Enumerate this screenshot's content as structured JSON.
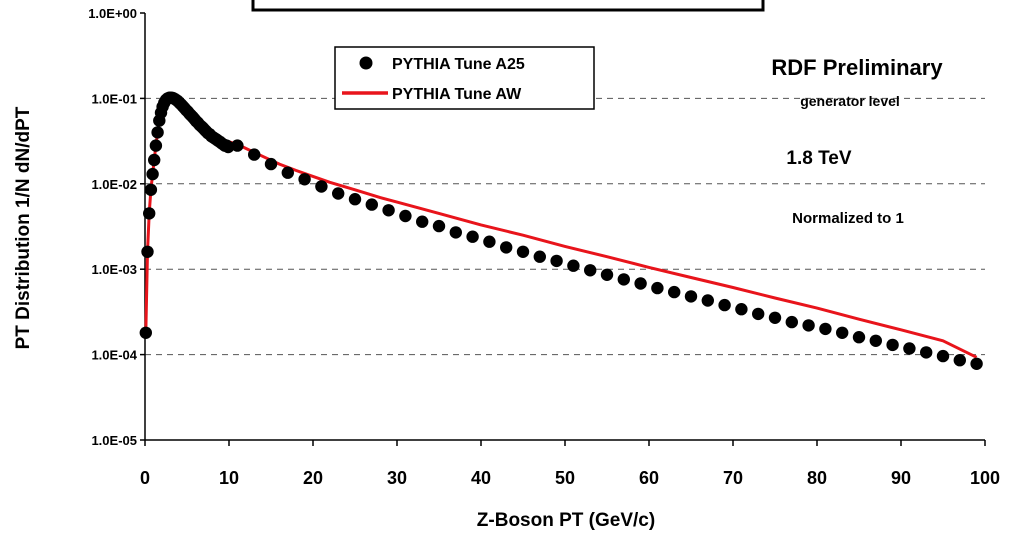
{
  "chart_data": {
    "type": "scatter",
    "xlabel": "Z-Boson PT (GeV/c)",
    "ylabel": "PT Distribution 1/N dN/dPT",
    "xlim": [
      0,
      100
    ],
    "ylim": [
      1e-05,
      1
    ],
    "yscale": "log",
    "x_ticks": [
      0,
      10,
      20,
      30,
      40,
      50,
      60,
      70,
      80,
      90,
      100
    ],
    "x_tick_labels": [
      "0",
      "10",
      "20",
      "30",
      "40",
      "50",
      "60",
      "70",
      "80",
      "90",
      "100"
    ],
    "y_ticks": [
      1,
      0.1,
      0.01,
      0.001,
      0.0001,
      1e-05
    ],
    "y_tick_labels": [
      "1.0E+00",
      "1.0E-01",
      "1.0E-02",
      "1.0E-03",
      "1.0E-04",
      "1.0E-05"
    ],
    "grid": "horizontal-dashed",
    "legend_position": "top-left",
    "series": [
      {
        "name": "PYTHIA Tune A25",
        "style": "markers",
        "color": "#000000",
        "x": [
          0.1,
          0.3,
          0.5,
          0.7,
          0.9,
          1.1,
          1.3,
          1.5,
          1.7,
          1.9,
          2.1,
          2.3,
          2.5,
          2.7,
          2.9,
          3.1,
          3.3,
          3.5,
          3.7,
          3.9,
          4.1,
          4.3,
          4.5,
          4.7,
          4.9,
          5.1,
          5.3,
          5.5,
          5.7,
          5.9,
          6.1,
          6.3,
          6.5,
          6.7,
          6.9,
          7.1,
          7.3,
          7.5,
          7.7,
          7.9,
          8.1,
          8.3,
          8.5,
          8.7,
          8.9,
          9.1,
          9.3,
          9.5,
          9.7,
          9.9,
          11,
          13,
          15,
          17,
          19,
          21,
          23,
          25,
          27,
          29,
          31,
          33,
          35,
          37,
          39,
          41,
          43,
          45,
          47,
          49,
          51,
          53,
          55,
          57,
          59,
          61,
          63,
          65,
          67,
          69,
          71,
          73,
          75,
          77,
          79,
          81,
          83,
          85,
          87,
          89,
          91,
          93,
          95,
          97,
          99
        ],
        "y": [
          0.00018,
          0.0016,
          0.0045,
          0.0085,
          0.013,
          0.019,
          0.028,
          0.04,
          0.055,
          0.068,
          0.08,
          0.089,
          0.096,
          0.1,
          0.102,
          0.102,
          0.101,
          0.099,
          0.096,
          0.093,
          0.089,
          0.085,
          0.081,
          0.077,
          0.073,
          0.07,
          0.066,
          0.063,
          0.06,
          0.057,
          0.054,
          0.052,
          0.049,
          0.047,
          0.045,
          0.043,
          0.041,
          0.039,
          0.038,
          0.036,
          0.035,
          0.034,
          0.033,
          0.032,
          0.031,
          0.03,
          0.029,
          0.028,
          0.028,
          0.027,
          0.028,
          0.022,
          0.017,
          0.0135,
          0.0113,
          0.0093,
          0.0077,
          0.0066,
          0.0057,
          0.0049,
          0.0042,
          0.0036,
          0.0032,
          0.0027,
          0.0024,
          0.0021,
          0.0018,
          0.0016,
          0.0014,
          0.00125,
          0.0011,
          0.00097,
          0.00086,
          0.00076,
          0.00068,
          0.0006,
          0.00054,
          0.00048,
          0.00043,
          0.00038,
          0.00034,
          0.0003,
          0.00027,
          0.00024,
          0.00022,
          0.0002,
          0.00018,
          0.00016,
          0.000145,
          0.00013,
          0.000118,
          0.000106,
          9.6e-05,
          8.6e-05,
          7.8e-05
        ]
      },
      {
        "name": "PYTHIA Tune AW",
        "style": "line",
        "color": "#e8141b",
        "x": [
          0.1,
          0.3,
          0.5,
          0.7,
          0.9,
          1.1,
          1.3,
          1.5,
          1.7,
          1.9,
          2.1,
          2.3,
          2.5,
          2.7,
          2.9,
          3.1,
          3.3,
          3.5,
          3.7,
          3.9,
          4.2,
          4.6,
          5,
          5.5,
          6,
          6.5,
          7,
          7.5,
          8,
          8.5,
          9,
          9.5,
          10,
          11,
          12,
          14,
          16,
          18,
          20,
          22,
          25,
          28,
          30,
          35,
          40,
          45,
          50,
          55,
          60,
          65,
          70,
          75,
          80,
          85,
          90,
          95,
          99
        ],
        "y": [
          0.00018,
          0.0016,
          0.0045,
          0.0085,
          0.013,
          0.019,
          0.028,
          0.04,
          0.055,
          0.068,
          0.08,
          0.089,
          0.096,
          0.1,
          0.102,
          0.102,
          0.101,
          0.099,
          0.096,
          0.093,
          0.087,
          0.08,
          0.073,
          0.066,
          0.059,
          0.053,
          0.048,
          0.043,
          0.04,
          0.037,
          0.034,
          0.032,
          0.031,
          0.029,
          0.026,
          0.021,
          0.017,
          0.0143,
          0.0122,
          0.0104,
          0.0085,
          0.0069,
          0.0061,
          0.0045,
          0.0033,
          0.0025,
          0.00185,
          0.0014,
          0.00105,
          0.0008,
          0.00061,
          0.00046,
          0.00035,
          0.00026,
          0.000195,
          0.000145,
          9.3e-05
        ]
      }
    ],
    "annotations": [
      {
        "id": "title",
        "text": "RDF Preliminary",
        "color": "#ee22ee"
      },
      {
        "id": "sub1",
        "text": "generator level"
      },
      {
        "id": "energy",
        "text": "1.8 TeV"
      },
      {
        "id": "norm",
        "text": "Normalized to 1"
      }
    ]
  }
}
